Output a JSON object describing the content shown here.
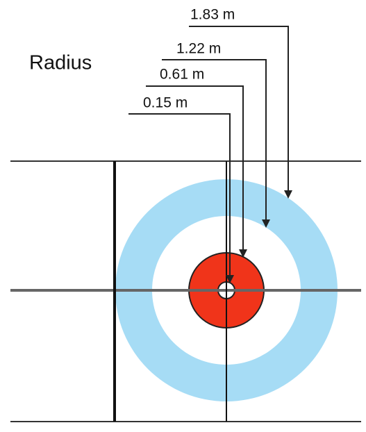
{
  "title": "Radius",
  "radii": [
    {
      "label": "1.83 m"
    },
    {
      "label": "1.22 m"
    },
    {
      "label": "0.61 m"
    },
    {
      "label": "0.15 m"
    }
  ]
}
